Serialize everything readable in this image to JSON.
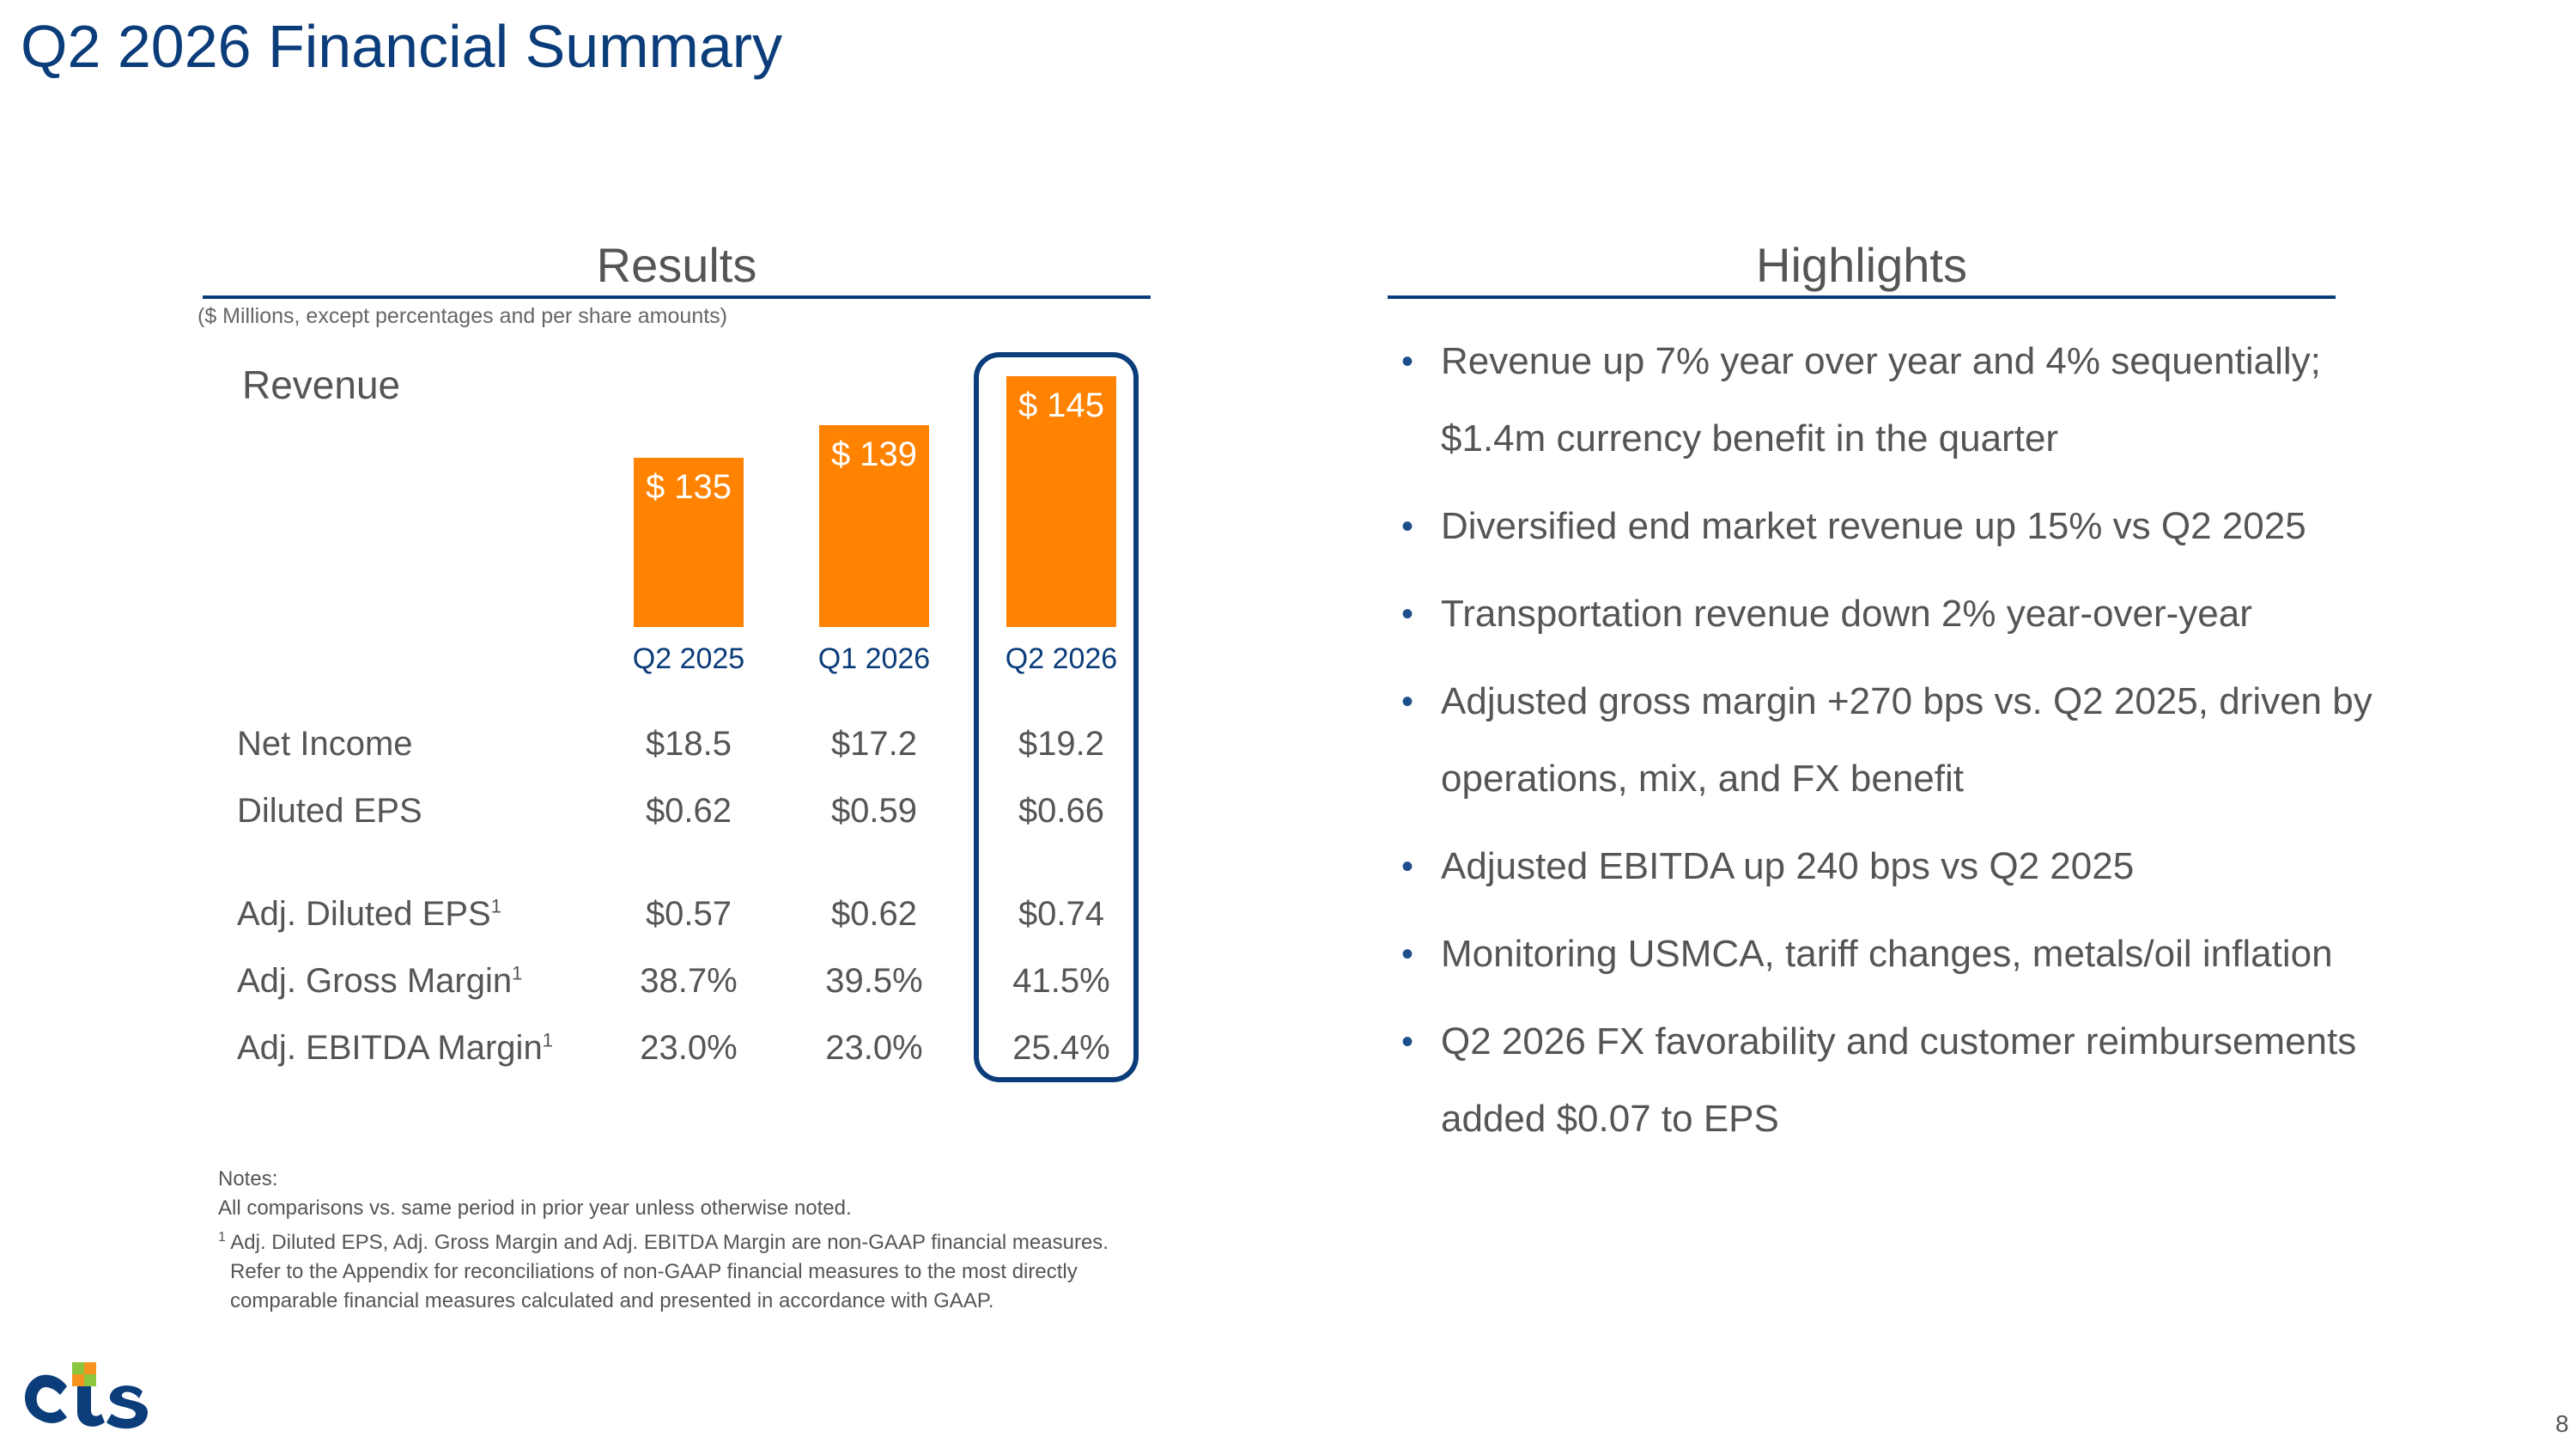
{
  "title": "Q2 2026 Financial Summary",
  "results": {
    "heading": "Results",
    "units_note": "($ Millions, except percentages and per share amounts)",
    "revenue_label": "Revenue"
  },
  "chart_data": {
    "type": "bar",
    "categories": [
      "Q2 2025",
      "Q1 2026",
      "Q2 2026"
    ],
    "values": [
      135,
      139,
      145
    ],
    "value_labels": [
      "$ 135",
      "$ 139",
      "$ 145"
    ],
    "title": "Revenue",
    "highlighted_category": "Q2 2026",
    "bar_color": "#ff8200"
  },
  "metrics": [
    {
      "label": "Net Income",
      "sup": "",
      "values": [
        "$18.5",
        "$17.2",
        "$19.2"
      ]
    },
    {
      "label": "Diluted EPS",
      "sup": "",
      "values": [
        "$0.62",
        "$0.59",
        "$0.66"
      ]
    },
    {
      "label": "Adj. Diluted EPS",
      "sup": "1",
      "values": [
        "$0.57",
        "$0.62",
        "$0.74"
      ]
    },
    {
      "label": "Adj. Gross Margin",
      "sup": "1",
      "values": [
        "38.7%",
        "39.5%",
        "41.5%"
      ]
    },
    {
      "label": "Adj. EBITDA Margin",
      "sup": "1",
      "values": [
        "23.0%",
        "23.0%",
        "25.4%"
      ]
    }
  ],
  "highlights": {
    "heading": "Highlights",
    "items": [
      "Revenue up 7% year over year and 4% sequentially;",
      "Diversified end market revenue up 15% vs Q2 2025",
      "Transportation revenue down 2% year-over-year",
      "Adjusted gross margin +270 bps vs. Q2 2025, driven by",
      "Adjusted EBITDA up 240 bps vs Q2 2025",
      "Monitoring USMCA, tariff changes, metals/oil inflation",
      "Q2 2026 FX favorability and customer reimbursements"
    ],
    "continuations": [
      "$1.4m currency benefit in the quarter",
      "",
      "",
      "operations, mix, and FX benefit",
      "",
      "",
      "added $0.07 to EPS"
    ]
  },
  "notes": {
    "heading": "Notes:",
    "line1": "All comparisons vs. same period in prior year unless otherwise noted.",
    "footnote_mark": "1",
    "line2": " Adj. Diluted EPS, Adj. Gross Margin and Adj. EBITDA Margin are non-GAAP financial measures.",
    "line3": "Refer to the Appendix for reconciliations of non-GAAP financial measures to the most directly",
    "line4": "comparable financial measures calculated and presented in accordance with GAAP."
  },
  "logo": {
    "text": "cts",
    "colors": {
      "c": "#0b3d7a",
      "i_dot": "#8dc63f",
      "i_dot2": "#f7941d",
      "s": "#0b3d7a"
    }
  },
  "page_number": "8",
  "colors": {
    "brand_blue": "#0b3d7a",
    "bar_orange": "#ff8200",
    "text_gray": "#555555"
  }
}
